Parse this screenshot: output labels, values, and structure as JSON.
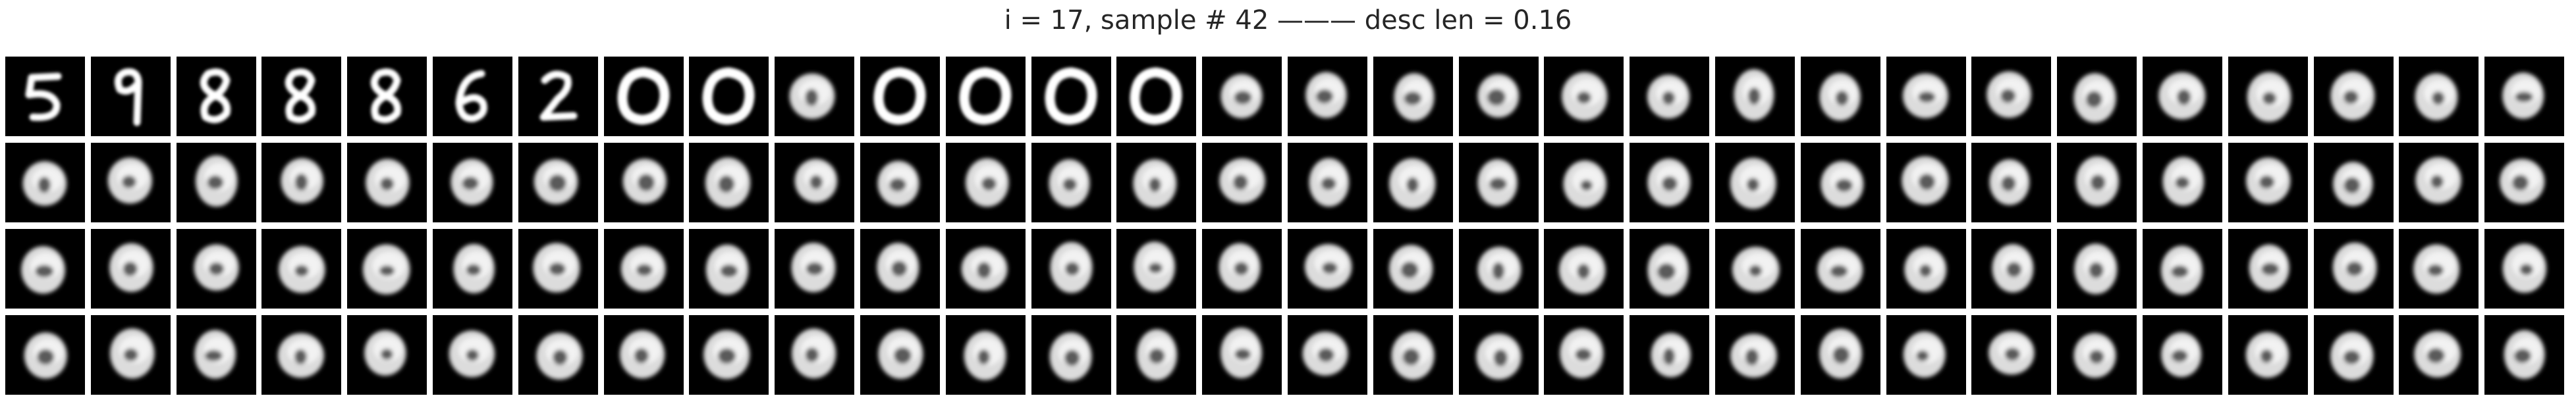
{
  "title": "i = 17, sample # 42 ——— desc len = 0.16",
  "grid": {
    "rows": 4,
    "cols": 30,
    "background": "#000000",
    "digit_color": "#ffffff",
    "tiles": [
      [
        "digit-5-icon",
        "digit-9-icon",
        "digit-8-icon",
        "digit-8-icon",
        "digit-8-icon",
        "digit-6-icon",
        "digit-2-icon",
        "digit-0-icon",
        "digit-0-icon",
        "blob-icon",
        "digit-0-icon",
        "digit-0-icon",
        "digit-0-icon",
        "digit-0-icon",
        "blob-icon",
        "blob-icon",
        "blob-icon",
        "blob-icon",
        "blob-icon",
        "blob-icon",
        "blob-icon",
        "blob-icon",
        "blob-icon",
        "blob-icon",
        "blob-icon",
        "blob-icon",
        "blob-icon",
        "blob-icon",
        "blob-icon",
        "blob-icon"
      ],
      [
        "blob-icon",
        "blob-icon",
        "blob-icon",
        "blob-icon",
        "blob-icon",
        "blob-icon",
        "blob-icon",
        "blob-icon",
        "blob-icon",
        "blob-icon",
        "blob-icon",
        "blob-icon",
        "blob-icon",
        "blob-icon",
        "blob-icon",
        "blob-icon",
        "blob-icon",
        "blob-icon",
        "blob-icon",
        "blob-icon",
        "blob-icon",
        "blob-icon",
        "blob-icon",
        "blob-icon",
        "blob-icon",
        "blob-icon",
        "blob-icon",
        "blob-icon",
        "blob-icon",
        "blob-icon"
      ],
      [
        "blob-icon",
        "blob-icon",
        "blob-icon",
        "blob-icon",
        "blob-icon",
        "blob-icon",
        "blob-icon",
        "blob-icon",
        "blob-icon",
        "blob-icon",
        "blob-icon",
        "blob-icon",
        "blob-icon",
        "blob-icon",
        "blob-icon",
        "blob-icon",
        "blob-icon",
        "blob-icon",
        "blob-icon",
        "blob-icon",
        "blob-icon",
        "blob-icon",
        "blob-icon",
        "blob-icon",
        "blob-icon",
        "blob-icon",
        "blob-icon",
        "blob-icon",
        "blob-icon",
        "blob-icon"
      ],
      [
        "blob-icon",
        "blob-icon",
        "blob-icon",
        "blob-icon",
        "blob-icon",
        "blob-icon",
        "blob-icon",
        "blob-icon",
        "blob-icon",
        "blob-icon",
        "blob-icon",
        "blob-icon",
        "blob-icon",
        "blob-icon",
        "blob-icon",
        "blob-icon",
        "blob-icon",
        "blob-icon",
        "blob-icon",
        "blob-icon",
        "blob-icon",
        "blob-icon",
        "blob-icon",
        "blob-icon",
        "blob-icon",
        "blob-icon",
        "blob-icon",
        "blob-icon",
        "blob-icon",
        "blob-icon"
      ]
    ]
  }
}
